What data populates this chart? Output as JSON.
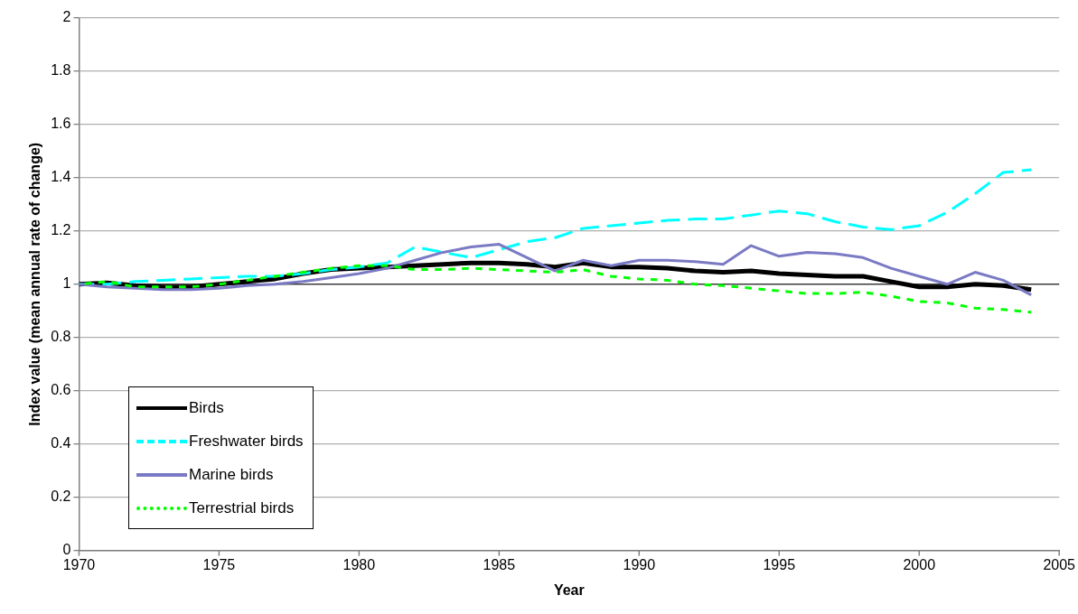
{
  "chart_data": {
    "type": "line",
    "xlabel": "Year",
    "ylabel": "Index value (mean annual rate of change)",
    "x": [
      1970,
      1971,
      1972,
      1973,
      1974,
      1975,
      1976,
      1977,
      1978,
      1979,
      1980,
      1981,
      1982,
      1983,
      1984,
      1985,
      1986,
      1987,
      1988,
      1989,
      1990,
      1991,
      1992,
      1993,
      1994,
      1995,
      1996,
      1997,
      1998,
      1999,
      2000,
      2001,
      2002,
      2003,
      2004
    ],
    "series": [
      {
        "name": "Birds",
        "color": "#000000",
        "line_style": "solid",
        "values": [
          1.0,
          1.005,
          0.995,
          0.99,
          0.99,
          1.0,
          1.01,
          1.02,
          1.04,
          1.055,
          1.06,
          1.065,
          1.07,
          1.075,
          1.08,
          1.08,
          1.075,
          1.065,
          1.08,
          1.065,
          1.065,
          1.06,
          1.05,
          1.045,
          1.05,
          1.04,
          1.035,
          1.03,
          1.03,
          1.01,
          0.99,
          0.99,
          1.0,
          0.995,
          0.98
        ]
      },
      {
        "name": "Freshwater birds",
        "color": "#00ffff",
        "line_style": "dashed",
        "values": [
          1.0,
          1.0,
          1.01,
          1.015,
          1.02,
          1.025,
          1.03,
          1.03,
          1.04,
          1.055,
          1.065,
          1.08,
          1.14,
          1.12,
          1.1,
          1.13,
          1.16,
          1.175,
          1.21,
          1.22,
          1.23,
          1.24,
          1.245,
          1.245,
          1.26,
          1.275,
          1.265,
          1.235,
          1.215,
          1.205,
          1.22,
          1.27,
          1.34,
          1.42,
          1.43
        ]
      },
      {
        "name": "Marine birds",
        "color": "#7a7ac4",
        "line_style": "solid",
        "values": [
          1.0,
          0.99,
          0.985,
          0.98,
          0.98,
          0.985,
          0.995,
          1.0,
          1.01,
          1.025,
          1.04,
          1.06,
          1.09,
          1.12,
          1.14,
          1.15,
          1.1,
          1.05,
          1.09,
          1.07,
          1.09,
          1.09,
          1.085,
          1.075,
          1.145,
          1.105,
          1.12,
          1.115,
          1.1,
          1.06,
          1.03,
          1.0,
          1.045,
          1.015,
          0.96
        ]
      },
      {
        "name": "Terrestrial birds",
        "color": "#00ff00",
        "line_style": "dotted",
        "values": [
          1.0,
          1.01,
          0.99,
          0.99,
          0.99,
          1.0,
          1.015,
          1.03,
          1.045,
          1.06,
          1.07,
          1.07,
          1.055,
          1.055,
          1.06,
          1.055,
          1.05,
          1.045,
          1.055,
          1.03,
          1.02,
          1.015,
          1.0,
          0.995,
          0.985,
          0.975,
          0.965,
          0.965,
          0.97,
          0.955,
          0.935,
          0.93,
          0.91,
          0.905,
          0.895
        ]
      }
    ],
    "xlim": [
      1970,
      2005
    ],
    "xticks": [
      1970,
      1975,
      1980,
      1985,
      1990,
      1995,
      2000,
      2005
    ],
    "ylim": [
      0,
      2
    ],
    "yticks": [
      0,
      0.2,
      0.4,
      0.6,
      0.8,
      1,
      1.2,
      1.4,
      1.6,
      1.8,
      2
    ],
    "ref_lines": [
      {
        "axis": "y",
        "value": 1,
        "color": "#000000"
      }
    ],
    "grid": "y",
    "legend": "bottom left",
    "marker": "none"
  }
}
